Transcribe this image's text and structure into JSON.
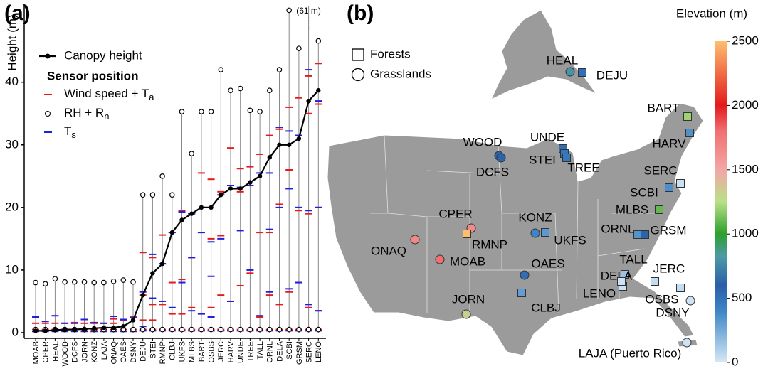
{
  "chart_data": [
    {
      "type": "sensor",
      "panel_label": "(a)",
      "ylabel": "Height (m)",
      "legend_title": "Sensor position",
      "annotation": "(61 m)",
      "categories": [
        "MOAB",
        "CPER",
        "HEAL",
        "WOOD",
        "DCFS",
        "JORN",
        "KONZ",
        "LAJA",
        "ONAQ",
        "OAES",
        "DSNY",
        "DEJU",
        "STEI",
        "RMNP",
        "CLBJ",
        "UKFS",
        "MLBS",
        "BART",
        "OSBS",
        "JERC",
        "HARV",
        "UNDE",
        "TREE",
        "TALL",
        "ORNL",
        "DELA",
        "SCBI",
        "GRSM",
        "SERC",
        "LENO"
      ],
      "ylim": [
        0,
        52
      ],
      "yticks": [
        0,
        10,
        20,
        30,
        40
      ],
      "series": [
        {
          "name": "Canopy height",
          "color": "#000000",
          "values": [
            0.3,
            0.3,
            0.4,
            0.5,
            0.5,
            0.6,
            0.7,
            0.8,
            0.8,
            1.0,
            2.0,
            6,
            9.5,
            11,
            16,
            18,
            19,
            20,
            20,
            22,
            23,
            23,
            24,
            25,
            28,
            30,
            30,
            31,
            37,
            38.7
          ]
        },
        {
          "name": "Wind speed + Ta",
          "color": "#e8191c",
          "subscript_last": true,
          "levels": [
            [
              0.5,
              1.5
            ],
            [
              0.5,
              1.5
            ],
            [
              0.5,
              1.5
            ],
            [
              0.5,
              1.5
            ],
            [
              0.5,
              1.6
            ],
            [
              0.5,
              1.5
            ],
            [
              0.5,
              1.5
            ],
            [
              0.5,
              1.5
            ],
            [
              0.5,
              1.5,
              2.2
            ],
            [
              0.5,
              2.0
            ],
            [
              0.5,
              2.5
            ],
            [
              0.5,
              2,
              6,
              12.8
            ],
            [
              0.5,
              2,
              4.5,
              12
            ],
            [
              0.5,
              4.5,
              11,
              15.6
            ],
            [
              0.5,
              3,
              8,
              16
            ],
            [
              0.5,
              3,
              8.5,
              19.5
            ],
            [
              0.5,
              4,
              12,
              19
            ],
            [
              0.5,
              3,
              16,
              25.5
            ],
            [
              0.5,
              4,
              15,
              24.5
            ],
            [
              0.5,
              6,
              15.5,
              22.5
            ],
            [
              0.5,
              5,
              23.5,
              29.5
            ],
            [
              0.5,
              7.5,
              22.5,
              26.2
            ],
            [
              0.5,
              9.5,
              23.5,
              26.5
            ],
            [
              0.5,
              2.5,
              16,
              28.5
            ],
            [
              0.5,
              6,
              16,
              31.5
            ],
            [
              0.5,
              4.5,
              20.5,
              32.5
            ],
            [
              0.5,
              6.5,
              26,
              36
            ],
            [
              0.5,
              8,
              19.5,
              31.5,
              37.5
            ],
            [
              0.5,
              4,
              19,
              35,
              41
            ],
            [
              0.5,
              3.5,
              20,
              36.5,
              43
            ]
          ]
        },
        {
          "name": "RH + Rn",
          "color": "#000000",
          "subscript_last": true,
          "levels": [
            [
              0.5,
              8
            ],
            [
              0.5,
              7.8
            ],
            [
              0.5,
              8.6
            ],
            [
              0.5,
              8.1
            ],
            [
              0.5,
              8.1
            ],
            [
              0.5,
              8.1
            ],
            [
              0.5,
              8
            ],
            [
              0.5,
              8
            ],
            [
              0.5,
              8.2
            ],
            [
              0.5,
              8.4
            ],
            [
              0.5,
              8.1
            ],
            [
              0.5,
              22
            ],
            [
              0.5,
              22
            ],
            [
              0.5,
              25
            ],
            [
              0.5,
              22
            ],
            [
              0.5,
              35.3
            ],
            [
              0.5,
              28.6
            ],
            [
              0.5,
              35.3
            ],
            [
              0.5,
              35.3
            ],
            [
              0.5,
              42
            ],
            [
              0.5,
              38.7
            ],
            [
              0.5,
              39
            ],
            [
              0.5,
              35.5
            ],
            [
              0.5,
              35.3
            ],
            [
              0.5,
              38.7
            ],
            [
              0.5,
              42
            ],
            [
              0.5,
              51.5
            ],
            [
              0.5,
              45.4
            ],
            [
              0.5,
              61
            ],
            [
              0.5,
              46.6
            ]
          ]
        },
        {
          "name": "Ts",
          "color": "#1f1fe0",
          "subscript_last": true,
          "levels": [
            [
              0.2,
              2.5
            ],
            [
              0.2,
              1.8
            ],
            [
              0.2,
              2.7
            ],
            [
              0.2,
              1.5
            ],
            [
              0.2,
              1.5
            ],
            [
              0.2,
              2.1
            ],
            [
              0.2,
              1.6
            ],
            [
              0.2,
              1.5
            ],
            [
              0.2,
              2.6
            ],
            [
              0.2,
              2.1
            ],
            [
              0.2,
              2.4
            ],
            [
              0.3,
              1,
              6.5
            ],
            [
              0.3,
              5.5,
              12.5
            ],
            [
              0.3,
              5,
              11
            ],
            [
              0.3,
              4,
              16
            ],
            [
              0.3,
              8,
              19.3
            ],
            [
              0.3,
              3.5,
              12,
              19
            ],
            [
              0.3,
              3,
              16
            ],
            [
              0.3,
              2.5,
              9,
              14.5
            ],
            [
              0.3,
              15,
              22
            ],
            [
              0.3,
              5,
              23.5
            ],
            [
              0.3,
              16.3,
              23.2
            ],
            [
              0.3,
              10,
              23.5
            ],
            [
              0.3,
              2.7,
              25.5
            ],
            [
              0.3,
              6.5,
              16.5,
              25.5
            ],
            [
              0.3,
              20,
              32.8
            ],
            [
              0.3,
              7,
              23,
              32.2
            ],
            [
              0.3,
              8,
              20,
              31.5
            ],
            [
              0.3,
              4.5,
              19.5,
              42
            ],
            [
              0.3,
              3.5,
              20,
              37
            ]
          ]
        }
      ]
    },
    {
      "type": "map",
      "panel_label": "(b)",
      "colorbar_label": "Elevation (m)",
      "clim": [
        0,
        2500
      ],
      "cticks": [
        0,
        500,
        1000,
        1500,
        2000,
        2500
      ],
      "legend": [
        {
          "name": "Forests",
          "shape": "square"
        },
        {
          "name": "Grasslands",
          "shape": "circle"
        }
      ],
      "sites": [
        {
          "label": "HEAL",
          "shape": "circle",
          "elevation": 800
        },
        {
          "label": "DEJU",
          "shape": "square",
          "elevation": 520
        },
        {
          "label": "BART",
          "shape": "square",
          "elevation": 1200
        },
        {
          "label": "HARV",
          "shape": "square",
          "elevation": 350
        },
        {
          "label": "WOOD",
          "shape": "circle",
          "elevation": 580
        },
        {
          "label": "DCFS",
          "shape": "circle",
          "elevation": 575
        },
        {
          "label": "UNDE",
          "shape": "square",
          "elevation": 520
        },
        {
          "label": "STEI",
          "shape": "square",
          "elevation": 480
        },
        {
          "label": "TREE",
          "shape": "square",
          "elevation": 470
        },
        {
          "label": "SERC",
          "shape": "square",
          "elevation": 30
        },
        {
          "label": "SCBI",
          "shape": "square",
          "elevation": 360
        },
        {
          "label": "MLBS",
          "shape": "square",
          "elevation": 1100
        },
        {
          "label": "ORNL",
          "shape": "square",
          "elevation": 340
        },
        {
          "label": "GRSM",
          "shape": "square",
          "elevation": 575
        },
        {
          "label": "CPER",
          "shape": "circle",
          "elevation": 1650
        },
        {
          "label": "RMNP",
          "shape": "square",
          "elevation": 2740
        },
        {
          "label": "ONAQ",
          "shape": "circle",
          "elevation": 1660
        },
        {
          "label": "MOAB",
          "shape": "circle",
          "elevation": 1800
        },
        {
          "label": "KONZ",
          "shape": "circle",
          "elevation": 400
        },
        {
          "label": "UKFS",
          "shape": "square",
          "elevation": 320
        },
        {
          "label": "OAES",
          "shape": "circle",
          "elevation": 520
        },
        {
          "label": "CLBJ",
          "shape": "square",
          "elevation": 300
        },
        {
          "label": "JORN",
          "shape": "circle",
          "elevation": 1320
        },
        {
          "label": "TALL",
          "shape": "square",
          "elevation": 150
        },
        {
          "label": "DELA",
          "shape": "square",
          "elevation": 30
        },
        {
          "label": "LENO",
          "shape": "square",
          "elevation": 20
        },
        {
          "label": "JERC",
          "shape": "square",
          "elevation": 50
        },
        {
          "label": "OSBS",
          "shape": "square",
          "elevation": 50
        },
        {
          "label": "DSNY",
          "shape": "circle",
          "elevation": 20
        },
        {
          "label": "LAJA (Puerto Rico)",
          "shape": "circle",
          "elevation": 20
        }
      ]
    }
  ]
}
